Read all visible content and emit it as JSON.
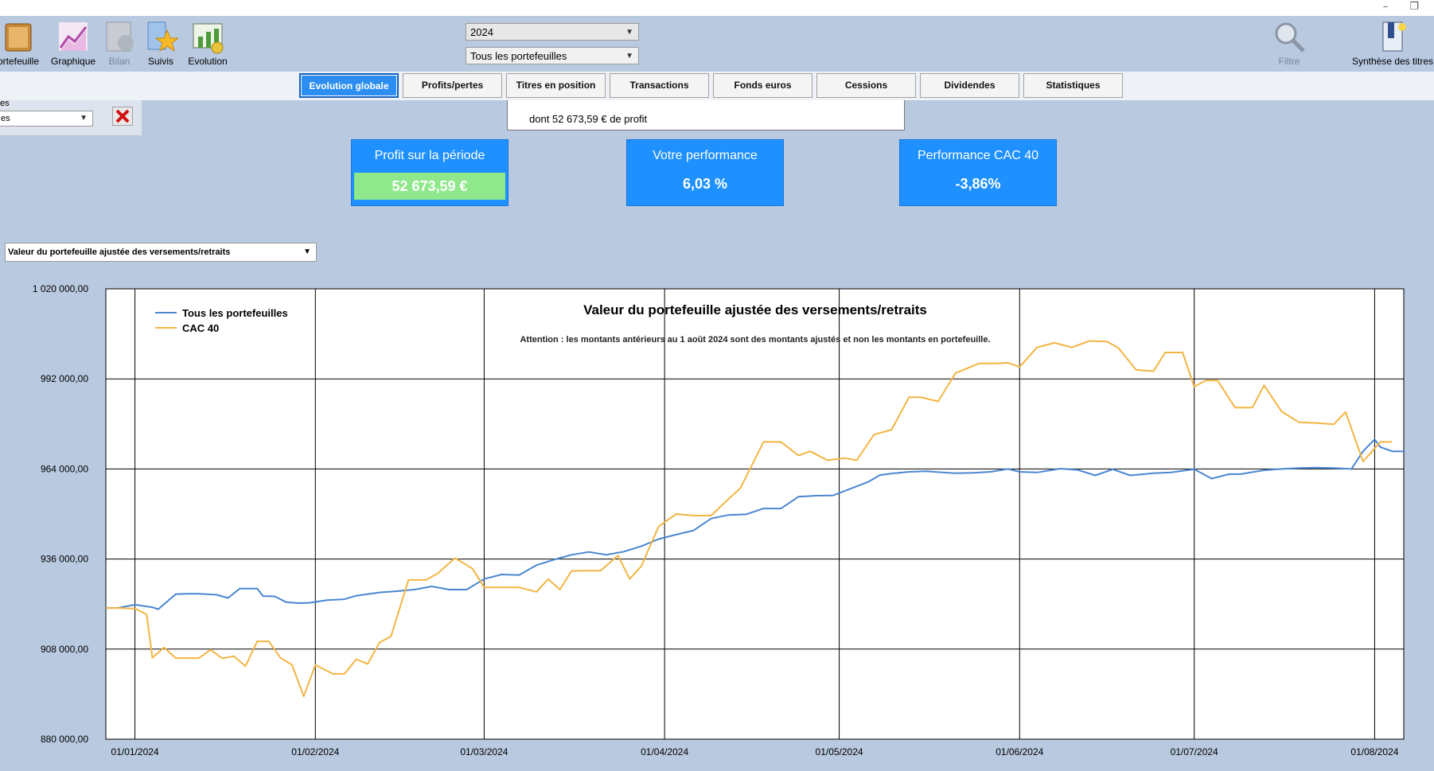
{
  "toolbar": {
    "items": [
      {
        "label": "ortefeuille",
        "icon": "portfolio-icon"
      },
      {
        "label": "Graphique",
        "icon": "chart-icon"
      },
      {
        "label": "Bilan",
        "icon": "balance-icon"
      },
      {
        "label": "Suivis",
        "icon": "star-icon"
      },
      {
        "label": "Evolution",
        "icon": "evolution-icon"
      }
    ],
    "year_select": "2024",
    "portfolio_select": "Tous les portefeuilles",
    "filter_label": "Filtre",
    "synthesis_label": "Synthèse des titres"
  },
  "tabs": [
    {
      "label": "Evolution globale",
      "active": true
    },
    {
      "label": "Profits/pertes",
      "active": false
    },
    {
      "label": "Titres en position",
      "active": false
    },
    {
      "label": "Transactions",
      "active": false
    },
    {
      "label": "Fonds euros",
      "active": false
    },
    {
      "label": "Cessions",
      "active": false
    },
    {
      "label": "Dividendes",
      "active": false
    },
    {
      "label": "Statistiques",
      "active": false
    }
  ],
  "left_panel": {
    "label": "es",
    "select_value": "es"
  },
  "popup_text": "dont 52 673,59 € de profit",
  "cards": {
    "profit": {
      "title": "Profit sur la période",
      "value": "52 673,59 €"
    },
    "perf": {
      "title": "Votre performance",
      "value": "6,03 %"
    },
    "cac": {
      "title": "Performance CAC 40",
      "value": "-3,86%"
    }
  },
  "chart_select": "Valeur du portefeuille ajustée des versements/retraits",
  "colors": {
    "portfolio_line": "#4a86d0",
    "cac_line": "#f2b544",
    "accent": "#1e90ff",
    "profit_bg": "#8fe88c"
  },
  "chart_data": {
    "type": "line",
    "title": "Valeur du portefeuille ajustée des versements/retraits",
    "subtitle": "Attention : les montants antérieurs au 1 août 2024 sont des montants ajustés et non les montants en portefeuille.",
    "legend_position": "top-left",
    "grid": true,
    "ylim": [
      880000,
      1020000
    ],
    "y_ticks": [
      "1 020 000,00",
      "992 000,00",
      "964 000,00",
      "936 000,00",
      "908 000,00",
      "880 000,00"
    ],
    "x_ticks": [
      "01/01/2024",
      "01/02/2024",
      "01/03/2024",
      "01/04/2024",
      "01/05/2024",
      "01/06/2024",
      "01/07/2024",
      "01/08/2024"
    ],
    "x_range": [
      "2023-12-27",
      "2024-08-06"
    ],
    "series": [
      {
        "name": "Tous les portefeuilles",
        "points": [
          [
            "2023-12-27",
            920800
          ],
          [
            "2023-12-29",
            920800
          ],
          [
            "2024-01-01",
            921800
          ],
          [
            "2024-01-04",
            921000
          ],
          [
            "2024-01-05",
            920400
          ],
          [
            "2024-01-08",
            925100
          ],
          [
            "2024-01-10",
            925200
          ],
          [
            "2024-01-12",
            925200
          ],
          [
            "2024-01-15",
            924900
          ],
          [
            "2024-01-17",
            923900
          ],
          [
            "2024-01-19",
            926800
          ],
          [
            "2024-01-22",
            926800
          ],
          [
            "2024-01-23",
            924500
          ],
          [
            "2024-01-25",
            924400
          ],
          [
            "2024-01-27",
            922600
          ],
          [
            "2024-01-29",
            922300
          ],
          [
            "2024-01-31",
            922400
          ],
          [
            "2024-02-03",
            923200
          ],
          [
            "2024-02-06",
            923500
          ],
          [
            "2024-02-08",
            924600
          ],
          [
            "2024-02-12",
            925600
          ],
          [
            "2024-02-15",
            926000
          ],
          [
            "2024-02-18",
            926500
          ],
          [
            "2024-02-21",
            927500
          ],
          [
            "2024-02-24",
            926500
          ],
          [
            "2024-02-27",
            926500
          ],
          [
            "2024-03-01",
            929800
          ],
          [
            "2024-03-04",
            931200
          ],
          [
            "2024-03-07",
            931000
          ],
          [
            "2024-03-10",
            934100
          ],
          [
            "2024-03-13",
            935800
          ],
          [
            "2024-03-16",
            937300
          ],
          [
            "2024-03-19",
            938200
          ],
          [
            "2024-03-22",
            937300
          ],
          [
            "2024-03-25",
            938300
          ],
          [
            "2024-03-28",
            940000
          ],
          [
            "2024-03-31",
            942200
          ],
          [
            "2024-04-03",
            943600
          ],
          [
            "2024-04-06",
            944900
          ],
          [
            "2024-04-09",
            948600
          ],
          [
            "2024-04-12",
            949700
          ],
          [
            "2024-04-15",
            949900
          ],
          [
            "2024-04-18",
            951700
          ],
          [
            "2024-04-21",
            951700
          ],
          [
            "2024-04-24",
            955400
          ],
          [
            "2024-04-27",
            955700
          ],
          [
            "2024-04-30",
            955800
          ],
          [
            "2024-05-03",
            957900
          ],
          [
            "2024-05-06",
            960000
          ],
          [
            "2024-05-08",
            962100
          ],
          [
            "2024-05-10",
            962600
          ],
          [
            "2024-05-13",
            963100
          ],
          [
            "2024-05-16",
            963300
          ],
          [
            "2024-05-18",
            963000
          ],
          [
            "2024-05-21",
            962700
          ],
          [
            "2024-05-24",
            962800
          ],
          [
            "2024-05-27",
            963100
          ],
          [
            "2024-05-30",
            964000
          ],
          [
            "2024-06-01",
            963100
          ],
          [
            "2024-06-04",
            962900
          ],
          [
            "2024-06-08",
            964100
          ],
          [
            "2024-06-11",
            963700
          ],
          [
            "2024-06-14",
            962000
          ],
          [
            "2024-06-17",
            963900
          ],
          [
            "2024-06-20",
            962000
          ],
          [
            "2024-06-24",
            962700
          ],
          [
            "2024-06-27",
            962900
          ],
          [
            "2024-07-01",
            963900
          ],
          [
            "2024-07-04",
            961000
          ],
          [
            "2024-07-07",
            962400
          ],
          [
            "2024-07-09",
            962400
          ],
          [
            "2024-07-11",
            963000
          ],
          [
            "2024-07-13",
            963600
          ],
          [
            "2024-07-16",
            964000
          ],
          [
            "2024-07-19",
            964300
          ],
          [
            "2024-07-22",
            964400
          ],
          [
            "2024-07-25",
            964300
          ],
          [
            "2024-07-28",
            964000
          ],
          [
            "2024-07-30",
            969500
          ],
          [
            "2024-08-01",
            973200
          ],
          [
            "2024-08-02",
            970800
          ],
          [
            "2024-08-04",
            969500
          ],
          [
            "2024-08-06",
            969500
          ]
        ]
      },
      {
        "name": "CAC 40",
        "points": [
          [
            "2023-12-27",
            920800
          ],
          [
            "2023-12-29",
            920800
          ],
          [
            "2024-01-01",
            920600
          ],
          [
            "2024-01-03",
            918800
          ],
          [
            "2024-01-04",
            905300
          ],
          [
            "2024-01-06",
            908500
          ],
          [
            "2024-01-08",
            905200
          ],
          [
            "2024-01-10",
            905200
          ],
          [
            "2024-01-12",
            905200
          ],
          [
            "2024-01-14",
            907800
          ],
          [
            "2024-01-16",
            905100
          ],
          [
            "2024-01-18",
            905800
          ],
          [
            "2024-01-20",
            902700
          ],
          [
            "2024-01-22",
            910400
          ],
          [
            "2024-01-24",
            910400
          ],
          [
            "2024-01-26",
            905300
          ],
          [
            "2024-01-28",
            903100
          ],
          [
            "2024-01-30",
            893300
          ],
          [
            "2024-02-01",
            903100
          ],
          [
            "2024-02-04",
            900300
          ],
          [
            "2024-02-06",
            900300
          ],
          [
            "2024-02-08",
            904800
          ],
          [
            "2024-02-10",
            903400
          ],
          [
            "2024-02-12",
            910000
          ],
          [
            "2024-02-14",
            912000
          ],
          [
            "2024-02-17",
            929500
          ],
          [
            "2024-02-20",
            929500
          ],
          [
            "2024-02-22",
            931500
          ],
          [
            "2024-02-25",
            936300
          ],
          [
            "2024-02-28",
            933000
          ],
          [
            "2024-03-01",
            927200
          ],
          [
            "2024-03-04",
            927200
          ],
          [
            "2024-03-07",
            927200
          ],
          [
            "2024-03-10",
            925800
          ],
          [
            "2024-03-12",
            929800
          ],
          [
            "2024-03-14",
            926500
          ],
          [
            "2024-03-16",
            932300
          ],
          [
            "2024-03-18",
            932400
          ],
          [
            "2024-03-21",
            932400
          ],
          [
            "2024-03-24",
            937100
          ],
          [
            "2024-03-26",
            929800
          ],
          [
            "2024-03-28",
            933800
          ],
          [
            "2024-03-31",
            946200
          ],
          [
            "2024-04-03",
            950000
          ],
          [
            "2024-04-06",
            949500
          ],
          [
            "2024-04-09",
            949500
          ],
          [
            "2024-04-12",
            954700
          ],
          [
            "2024-04-14",
            958000
          ],
          [
            "2024-04-18",
            972400
          ],
          [
            "2024-04-21",
            972400
          ],
          [
            "2024-04-24",
            968200
          ],
          [
            "2024-04-26",
            969500
          ],
          [
            "2024-04-29",
            966700
          ],
          [
            "2024-05-02",
            967400
          ],
          [
            "2024-05-04",
            966700
          ],
          [
            "2024-05-07",
            974700
          ],
          [
            "2024-05-10",
            976200
          ],
          [
            "2024-05-13",
            986300
          ],
          [
            "2024-05-15",
            986300
          ],
          [
            "2024-05-18",
            985000
          ],
          [
            "2024-05-21",
            993800
          ],
          [
            "2024-05-25",
            996800
          ],
          [
            "2024-05-28",
            996800
          ],
          [
            "2024-05-30",
            997000
          ],
          [
            "2024-06-01",
            995700
          ],
          [
            "2024-06-04",
            1001800
          ],
          [
            "2024-06-07",
            1003200
          ],
          [
            "2024-06-10",
            1001800
          ],
          [
            "2024-06-13",
            1003800
          ],
          [
            "2024-06-16",
            1003600
          ],
          [
            "2024-06-18",
            1001600
          ],
          [
            "2024-06-21",
            994800
          ],
          [
            "2024-06-24",
            994400
          ],
          [
            "2024-06-26",
            1000200
          ],
          [
            "2024-06-29",
            1000200
          ],
          [
            "2024-07-01",
            989600
          ],
          [
            "2024-07-03",
            991500
          ],
          [
            "2024-07-05",
            991500
          ],
          [
            "2024-07-08",
            983100
          ],
          [
            "2024-07-11",
            983100
          ],
          [
            "2024-07-13",
            990000
          ],
          [
            "2024-07-16",
            981900
          ],
          [
            "2024-07-19",
            978500
          ],
          [
            "2024-07-22",
            978300
          ],
          [
            "2024-07-25",
            977900
          ],
          [
            "2024-07-27",
            981700
          ],
          [
            "2024-07-30",
            966300
          ],
          [
            "2024-08-02",
            972400
          ],
          [
            "2024-08-04",
            972400
          ]
        ]
      }
    ]
  }
}
